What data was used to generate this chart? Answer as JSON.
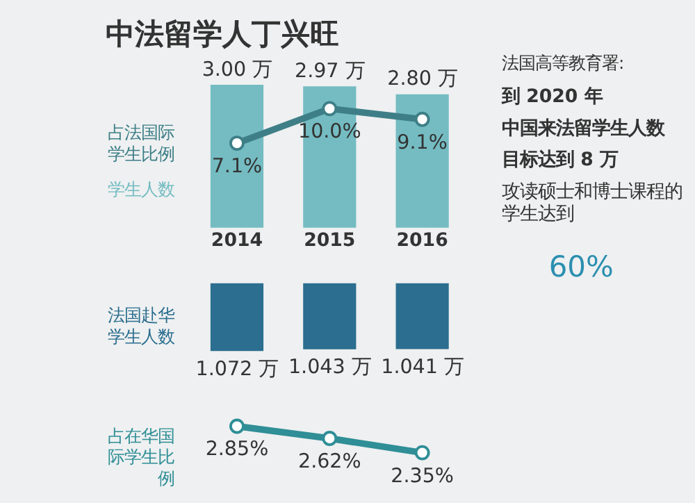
{
  "chart_data": [
    {
      "type": "bar",
      "title": "中法留学人丁兴旺",
      "categories": [
        "2014",
        "2015",
        "2016"
      ],
      "tick_labels": "x",
      "marker": "circle",
      "series": [
        {
          "name": "学生人数",
          "color": "#74bcc2",
          "values": [
            3.0,
            2.97,
            2.8
          ],
          "value_labels": [
            "3.00 万",
            "2.97 万",
            "2.80 万"
          ]
        },
        {
          "name": "占法国际学生比例",
          "type": "line",
          "axis": "y2",
          "color": "#3e7f87",
          "values": [
            7.1,
            10.0,
            9.1
          ],
          "value_labels": [
            "7.1%",
            "10.0%",
            "9.1%"
          ]
        }
      ]
    },
    {
      "type": "bar",
      "categories": [
        "2014",
        "2015",
        "2016"
      ],
      "tick_labels": false,
      "marker": "circle",
      "series": [
        {
          "name": "法国赴华学生人数",
          "color": "#2b6e8f",
          "values": [
            1.072,
            1.043,
            1.041
          ],
          "value_labels": [
            "1.072 万",
            "1.043 万",
            "1.041 万"
          ]
        }
      ]
    },
    {
      "type": "line",
      "categories": [
        "2014",
        "2015",
        "2016"
      ],
      "tick_labels": false,
      "marker": "circle",
      "series": [
        {
          "name": "占在华国际学生比例",
          "color": "#2f8e96",
          "values": [
            2.85,
            2.62,
            2.35
          ],
          "value_labels": [
            "2.85%",
            "2.62%",
            "2.35%"
          ]
        }
      ]
    },
    {
      "type": "other",
      "annotations": [
        "法国高等教育署:",
        "到 2020 年",
        "中国来法留学生人数",
        "目标达到 8 万",
        "攻读硕士和博士课程的学生达到",
        "60%"
      ]
    }
  ]
}
